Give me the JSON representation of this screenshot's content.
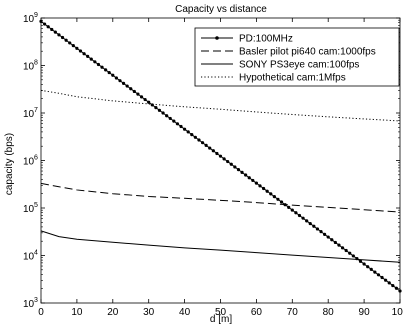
{
  "chart_data": {
    "type": "line",
    "title": "Capacity vs distance",
    "xlabel": "d [m]",
    "ylabel": "capacity (bps)",
    "xlim": [
      0,
      100
    ],
    "ylim": [
      1000,
      1000000000
    ],
    "yscale": "log",
    "grid": false,
    "legend_position": "top-right",
    "x_ticks": [
      0,
      10,
      20,
      30,
      40,
      50,
      60,
      70,
      80,
      90,
      100
    ],
    "y_ticks": [
      {
        "value": 1000,
        "base": "10",
        "exp": "3"
      },
      {
        "value": 10000,
        "base": "10",
        "exp": "4"
      },
      {
        "value": 100000,
        "base": "10",
        "exp": "5"
      },
      {
        "value": 1000000,
        "base": "10",
        "exp": "6"
      },
      {
        "value": 10000000,
        "base": "10",
        "exp": "7"
      },
      {
        "value": 100000000,
        "base": "10",
        "exp": "8"
      },
      {
        "value": 1000000000,
        "base": "10",
        "exp": "9"
      }
    ],
    "series": [
      {
        "name": "PD:100MHz",
        "style": "solid-marker",
        "color": "#000000",
        "formula": "exp_decay",
        "y0": 850000000,
        "decay_per_m": 0.1307,
        "x_step": 1
      },
      {
        "name": "Basler pilot pi640 cam:1000fps",
        "style": "dashed",
        "color": "#000000",
        "x": [
          0,
          5,
          10,
          20,
          30,
          40,
          50,
          60,
          70,
          80,
          90,
          100
        ],
        "values": [
          330000,
          280000,
          240000,
          200000,
          175000,
          160000,
          145000,
          130000,
          115000,
          103000,
          92000,
          82000
        ]
      },
      {
        "name": "SONY PS3eye cam:100fps",
        "style": "solid",
        "color": "#000000",
        "x": [
          0,
          5,
          10,
          20,
          30,
          40,
          50,
          60,
          70,
          80,
          90,
          100
        ],
        "values": [
          33000,
          25000,
          22000,
          19000,
          16500,
          14500,
          13000,
          11500,
          10200,
          9100,
          8100,
          7200
        ]
      },
      {
        "name": "Hypothetical cam:1Mfps",
        "style": "dotted",
        "color": "#000000",
        "x": [
          0,
          5,
          10,
          20,
          30,
          40,
          50,
          60,
          70,
          80,
          90,
          100
        ],
        "values": [
          30000000,
          26000000,
          22000000,
          18000000,
          15500000,
          13500000,
          12000000,
          10500000,
          9300000,
          8300000,
          7500000,
          6800000
        ]
      }
    ]
  }
}
